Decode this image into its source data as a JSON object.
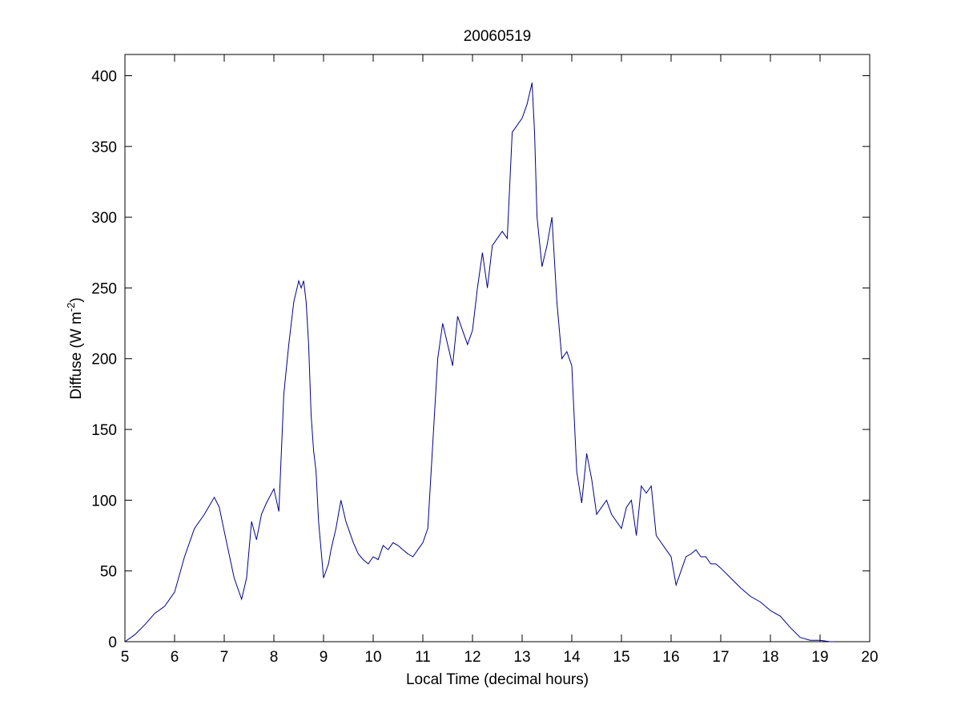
{
  "colors": {
    "line": "#00008B",
    "axes": "#000000",
    "background": "#ffffff"
  },
  "chart_data": {
    "type": "line",
    "title": "20060519",
    "xlabel": "Local Time (decimal hours)",
    "ylabel_main": "Diffuse (W m",
    "ylabel_sup": "-2",
    "ylabel_close": ")",
    "xlim": [
      5,
      20
    ],
    "ylim": [
      0,
      415
    ],
    "xticks": [
      5,
      6,
      7,
      8,
      9,
      10,
      11,
      12,
      13,
      14,
      15,
      16,
      17,
      18,
      19,
      20
    ],
    "yticks": [
      0,
      50,
      100,
      150,
      200,
      250,
      300,
      350,
      400
    ],
    "grid": false,
    "series": [
      {
        "x": [
          5.0,
          5.2,
          5.4,
          5.6,
          5.8,
          6.0,
          6.2,
          6.4,
          6.6,
          6.8,
          6.9,
          7.0,
          7.2,
          7.35,
          7.45,
          7.55,
          7.65,
          7.75,
          7.85,
          8.0,
          8.1,
          8.2,
          8.3,
          8.4,
          8.5,
          8.55,
          8.6,
          8.65,
          8.7,
          8.75,
          8.8,
          8.85,
          8.9,
          9.0,
          9.1,
          9.15,
          9.25,
          9.35,
          9.45,
          9.5,
          9.6,
          9.7,
          9.8,
          9.9,
          10.0,
          10.1,
          10.2,
          10.3,
          10.4,
          10.5,
          10.6,
          10.7,
          10.8,
          10.9,
          11.0,
          11.1,
          11.2,
          11.3,
          11.4,
          11.5,
          11.6,
          11.7,
          11.8,
          11.9,
          12.0,
          12.1,
          12.2,
          12.3,
          12.4,
          12.5,
          12.6,
          12.7,
          12.8,
          12.9,
          13.0,
          13.1,
          13.2,
          13.25,
          13.3,
          13.4,
          13.5,
          13.6,
          13.65,
          13.7,
          13.8,
          13.9,
          14.0,
          14.1,
          14.2,
          14.3,
          14.4,
          14.5,
          14.6,
          14.7,
          14.8,
          14.9,
          15.0,
          15.1,
          15.2,
          15.3,
          15.4,
          15.5,
          15.6,
          15.7,
          15.8,
          15.9,
          16.0,
          16.1,
          16.2,
          16.3,
          16.4,
          16.5,
          16.6,
          16.7,
          16.8,
          16.9,
          17.0,
          17.2,
          17.4,
          17.6,
          17.8,
          18.0,
          18.2,
          18.4,
          18.6,
          18.8,
          19.0,
          19.2,
          19.3
        ],
        "y": [
          0,
          5,
          12,
          20,
          25,
          35,
          60,
          80,
          90,
          102,
          95,
          78,
          45,
          30,
          45,
          85,
          72,
          90,
          98,
          108,
          92,
          175,
          210,
          240,
          255,
          250,
          255,
          240,
          210,
          160,
          135,
          120,
          85,
          45,
          55,
          65,
          80,
          100,
          85,
          80,
          70,
          62,
          58,
          55,
          60,
          58,
          68,
          65,
          70,
          68,
          65,
          62,
          60,
          65,
          70,
          80,
          140,
          200,
          225,
          210,
          195,
          230,
          220,
          210,
          220,
          250,
          275,
          250,
          280,
          285,
          290,
          285,
          360,
          365,
          370,
          380,
          395,
          360,
          300,
          265,
          280,
          300,
          270,
          240,
          200,
          205,
          195,
          120,
          98,
          133,
          115,
          90,
          95,
          100,
          90,
          85,
          80,
          95,
          100,
          75,
          110,
          105,
          110,
          75,
          70,
          65,
          60,
          40,
          50,
          60,
          62,
          65,
          60,
          60,
          55,
          55,
          52,
          45,
          38,
          32,
          28,
          22,
          18,
          10,
          3,
          1,
          1,
          0,
          0
        ]
      }
    ]
  }
}
